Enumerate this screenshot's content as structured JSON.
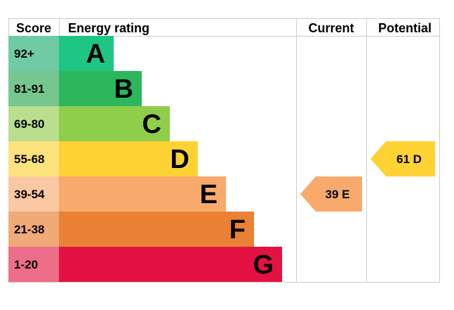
{
  "chart_data": {
    "type": "bar",
    "headers": {
      "score": "Score",
      "energy_rating": "Energy rating",
      "current": "Current",
      "potential": "Potential"
    },
    "bands": [
      {
        "letter": "A",
        "score_range": "92+",
        "color": "#1fc583",
        "score_color": "#6fcba4",
        "letter_color": "#000000"
      },
      {
        "letter": "B",
        "score_range": "81-91",
        "color": "#2cb75c",
        "score_color": "#76c690",
        "letter_color": "#000000"
      },
      {
        "letter": "C",
        "score_range": "69-80",
        "color": "#8fce4a",
        "score_color": "#b9de8e",
        "letter_color": "#000000"
      },
      {
        "letter": "D",
        "score_range": "55-68",
        "color": "#fed233",
        "score_color": "#fde27e",
        "letter_color": "#000000"
      },
      {
        "letter": "E",
        "score_range": "39-54",
        "color": "#f8aa6c",
        "score_color": "#fac8a2",
        "letter_color": "#000000"
      },
      {
        "letter": "F",
        "score_range": "21-38",
        "color": "#ea8134",
        "score_color": "#f0aa78",
        "letter_color": "#000000"
      },
      {
        "letter": "G",
        "score_range": "1-20",
        "color": "#e41243",
        "score_color": "#ee6d89",
        "letter_color": "#000000"
      }
    ],
    "current": {
      "score": 39,
      "rating": "E",
      "label": "39 E",
      "color": "#f8aa6c"
    },
    "potential": {
      "score": 61,
      "rating": "D",
      "label": "61 D",
      "color": "#fed233"
    },
    "border_color": "#cccccc"
  }
}
